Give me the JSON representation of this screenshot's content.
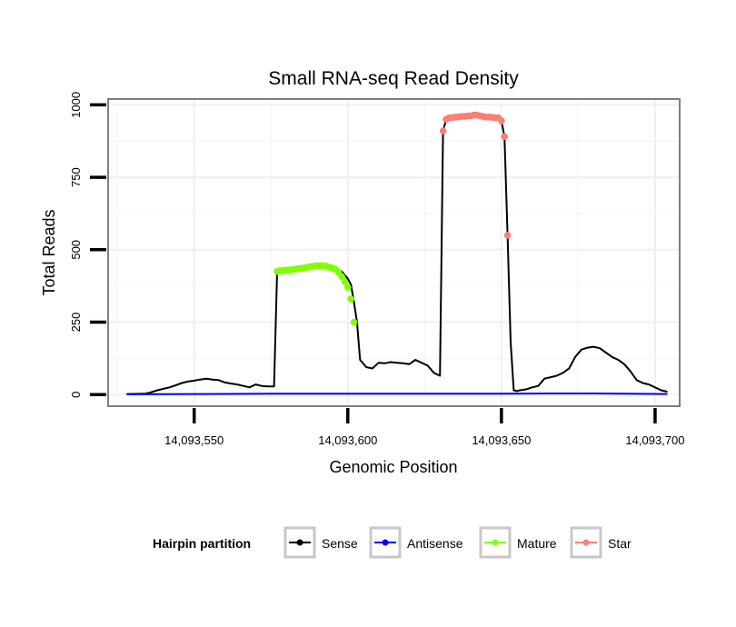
{
  "chart_data": {
    "type": "line",
    "title": "Small RNA-seq Read Density",
    "xlabel": "Genomic Position",
    "ylabel": "Total Reads",
    "xlim": [
      14093522,
      14093708
    ],
    "ylim": [
      -40,
      1020
    ],
    "x_ticks": [
      14093550,
      14093600,
      14093650,
      14093700
    ],
    "x_tick_labels": [
      "14,093,550",
      "14,093,600",
      "14,093,650",
      "14,093,700"
    ],
    "y_ticks": [
      0,
      250,
      500,
      750,
      1000
    ],
    "y_tick_labels": [
      "0",
      "250",
      "500",
      "750",
      "1000"
    ],
    "grid": true,
    "legend": {
      "title": "Hairpin partition",
      "position": "bottom",
      "entries": [
        "Sense",
        "Antisense",
        "Mature",
        "Star"
      ]
    },
    "series": [
      {
        "name": "Sense",
        "color": "#000000",
        "markers": false,
        "x": [
          14093528,
          14093534,
          14093536,
          14093538,
          14093540,
          14093542,
          14093544,
          14093546,
          14093548,
          14093550,
          14093552,
          14093554,
          14093556,
          14093558,
          14093560,
          14093562,
          14093564,
          14093566,
          14093568,
          14093570,
          14093572,
          14093574,
          14093576,
          14093577,
          14093578,
          14093580,
          14093582,
          14093584,
          14093586,
          14093588,
          14093590,
          14093592,
          14093594,
          14093596,
          14093598,
          14093600,
          14093601,
          14093602,
          14093603,
          14093604,
          14093606,
          14093608,
          14093610,
          14093612,
          14093614,
          14093616,
          14093618,
          14093620,
          14093622,
          14093624,
          14093626,
          14093628,
          14093630,
          14093631,
          14093632,
          14093633,
          14093634,
          14093636,
          14093638,
          14093640,
          14093642,
          14093644,
          14093646,
          14093648,
          14093650,
          14093651,
          14093652,
          14093653,
          14093654,
          14093655,
          14093656,
          14093658,
          14093660,
          14093662,
          14093664,
          14093666,
          14093668,
          14093670,
          14093672,
          14093674,
          14093676,
          14093678,
          14093680,
          14093682,
          14093684,
          14093686,
          14093688,
          14093690,
          14093692,
          14093694,
          14093696,
          14093698,
          14093700,
          14093702,
          14093704
        ],
        "y": [
          2,
          3,
          8,
          15,
          20,
          25,
          32,
          40,
          45,
          48,
          52,
          55,
          52,
          50,
          42,
          38,
          35,
          30,
          25,
          35,
          30,
          28,
          28,
          425,
          428,
          430,
          432,
          435,
          438,
          442,
          445,
          445,
          440,
          435,
          425,
          400,
          380,
          320,
          250,
          120,
          95,
          90,
          110,
          108,
          112,
          110,
          108,
          105,
          120,
          110,
          100,
          75,
          65,
          910,
          950,
          955,
          958,
          960,
          962,
          965,
          962,
          960,
          958,
          955,
          945,
          890,
          550,
          180,
          15,
          12,
          15,
          18,
          25,
          30,
          55,
          60,
          65,
          75,
          90,
          130,
          155,
          162,
          165,
          160,
          145,
          130,
          120,
          105,
          80,
          50,
          40,
          35,
          25,
          15,
          10
        ]
      },
      {
        "name": "Antisense",
        "color": "#0000ff",
        "markers": false,
        "x": [
          14093528,
          14093550,
          14093575,
          14093600,
          14093625,
          14093650,
          14093665,
          14093680,
          14093690,
          14093704
        ],
        "y": [
          1,
          2,
          3,
          3,
          3,
          3,
          4,
          4,
          3,
          2
        ]
      },
      {
        "name": "Mature",
        "color": "#80ff00",
        "markers": true,
        "x": [
          14093577,
          14093578,
          14093579,
          14093580,
          14093581,
          14093582,
          14093583,
          14093584,
          14093585,
          14093586,
          14093587,
          14093588,
          14093589,
          14093590,
          14093591,
          14093592,
          14093593,
          14093594,
          14093595,
          14093596,
          14093597,
          14093598,
          14093599,
          14093600,
          14093601,
          14093602
        ],
        "y": [
          425,
          428,
          428,
          430,
          430,
          432,
          433,
          435,
          436,
          438,
          440,
          442,
          443,
          445,
          445,
          445,
          443,
          440,
          437,
          432,
          422,
          408,
          390,
          370,
          330,
          250
        ]
      },
      {
        "name": "Star",
        "color": "#fa8072",
        "markers": true,
        "x": [
          14093631,
          14093632,
          14093633,
          14093634,
          14093635,
          14093636,
          14093637,
          14093638,
          14093639,
          14093640,
          14093641,
          14093642,
          14093643,
          14093644,
          14093645,
          14093646,
          14093647,
          14093648,
          14093649,
          14093650,
          14093651,
          14093652
        ],
        "y": [
          910,
          950,
          955,
          956,
          958,
          958,
          960,
          960,
          962,
          962,
          965,
          965,
          962,
          960,
          958,
          958,
          957,
          955,
          955,
          945,
          890,
          550
        ]
      }
    ]
  }
}
